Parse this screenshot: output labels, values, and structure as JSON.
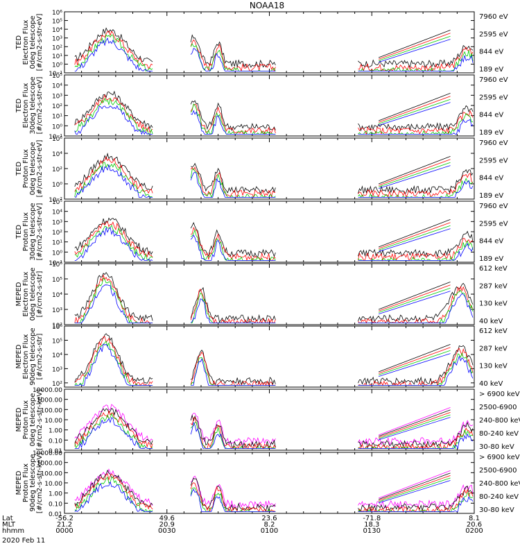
{
  "title": "NOAA18",
  "colors": {
    "black": "#000000",
    "red": "#ff0000",
    "green": "#00cc00",
    "blue": "#0000ff",
    "magenta": "#ff00ff"
  },
  "chart_data": [
    {
      "type": "line",
      "id": "p1",
      "ylabel": [
        "TED",
        "Electron Flux",
        "0deg telescope",
        "[#/cm2-s-str-eV]"
      ],
      "ylim_exp": [
        -1,
        6
      ],
      "ticks": [
        {
          "v": 6,
          "t": "10⁶"
        },
        {
          "v": 5,
          "t": "10⁵"
        },
        {
          "v": 4,
          "t": "10⁴"
        },
        {
          "v": 3,
          "t": "10³"
        },
        {
          "v": 2,
          "t": "10²"
        },
        {
          "v": 1,
          "t": "10¹"
        },
        {
          "v": 0,
          "t": "10⁰"
        },
        {
          "v": -1,
          "t": "10⁻¹"
        }
      ],
      "legend": [
        {
          "label": "7960 eV",
          "color": "black"
        },
        {
          "label": "2595 eV",
          "color": "red"
        },
        {
          "label": "844 eV",
          "color": "green"
        },
        {
          "label": "189 eV",
          "color": "blue"
        }
      ]
    },
    {
      "type": "line",
      "id": "p2",
      "ylabel": [
        "TED",
        "Electron Flux",
        "30deg telescope",
        "[#/cm2-s-str-eV]"
      ],
      "ylim_exp": [
        -1,
        5
      ],
      "ticks": [
        {
          "v": 5,
          "t": "10⁵"
        },
        {
          "v": 4,
          "t": "10⁴"
        },
        {
          "v": 3,
          "t": "10³"
        },
        {
          "v": 2,
          "t": "10²"
        },
        {
          "v": 1,
          "t": "10¹"
        },
        {
          "v": 0,
          "t": "10⁰"
        },
        {
          "v": -1,
          "t": "10⁻¹"
        }
      ],
      "legend": [
        {
          "label": "7960 eV",
          "color": "black"
        },
        {
          "label": "2595 eV",
          "color": "red"
        },
        {
          "label": "844 eV",
          "color": "green"
        },
        {
          "label": "189 eV",
          "color": "blue"
        }
      ]
    },
    {
      "type": "line",
      "id": "p3",
      "ylabel": [
        "TED",
        "Proton Flux",
        "0deg telescope",
        "[#/cm2-s-str-eV]"
      ],
      "ylim_exp": [
        -2,
        6
      ],
      "ticks": [
        {
          "v": 6,
          "t": "10⁶"
        },
        {
          "v": 4,
          "t": "10⁴"
        },
        {
          "v": 2,
          "t": "10²"
        },
        {
          "v": 0,
          "t": "10⁰"
        },
        {
          "v": -2,
          "t": "10⁻²"
        }
      ],
      "legend": [
        {
          "label": "7960 eV",
          "color": "black"
        },
        {
          "label": "2595 eV",
          "color": "red"
        },
        {
          "label": "844 eV",
          "color": "green"
        },
        {
          "label": "189 eV",
          "color": "blue"
        }
      ]
    },
    {
      "type": "line",
      "id": "p4",
      "ylabel": [
        "TED",
        "Proton Flux",
        "30deg telescope",
        "[#/cm2-s-str-eV]"
      ],
      "ylim_exp": [
        -1,
        5
      ],
      "ticks": [
        {
          "v": 5,
          "t": "10⁵"
        },
        {
          "v": 4,
          "t": "10⁴"
        },
        {
          "v": 3,
          "t": "10³"
        },
        {
          "v": 2,
          "t": "10²"
        },
        {
          "v": 1,
          "t": "10¹"
        },
        {
          "v": 0,
          "t": "10⁰"
        },
        {
          "v": -1,
          "t": "10⁻¹"
        }
      ],
      "legend": [
        {
          "label": "7960 eV",
          "color": "black"
        },
        {
          "label": "2595 eV",
          "color": "red"
        },
        {
          "label": "844 eV",
          "color": "green"
        },
        {
          "label": "189 eV",
          "color": "blue"
        }
      ]
    },
    {
      "type": "line",
      "id": "p5",
      "ylabel": [
        "MEPED",
        "Electron Flux",
        "0deg telescope",
        "[#/cm2-s-str]"
      ],
      "ylim_exp": [
        2,
        6
      ],
      "ticks": [
        {
          "v": 6,
          "t": "10⁶"
        },
        {
          "v": 5,
          "t": "10⁵"
        },
        {
          "v": 4,
          "t": "10⁴"
        },
        {
          "v": 3,
          "t": "10³"
        },
        {
          "v": 2,
          "t": "10²"
        }
      ],
      "legend": [
        {
          "label": "612 keV",
          "color": "black"
        },
        {
          "label": "287 keV",
          "color": "red"
        },
        {
          "label": "130 keV",
          "color": "green"
        },
        {
          "label": "40 keV",
          "color": "blue"
        }
      ]
    },
    {
      "type": "line",
      "id": "p6",
      "ylabel": [
        "MEPED",
        "Electron Flux",
        "90deg telescope",
        "[#/cm2-s-str]"
      ],
      "ylim_exp": [
        1.7,
        6
      ],
      "ticks": [
        {
          "v": 6,
          "t": "10⁶"
        },
        {
          "v": 5,
          "t": "10⁵"
        },
        {
          "v": 4,
          "t": "10⁴"
        },
        {
          "v": 3,
          "t": "10³"
        },
        {
          "v": 2,
          "t": "10²"
        }
      ],
      "legend": [
        {
          "label": "612 keV",
          "color": "black"
        },
        {
          "label": "287 keV",
          "color": "red"
        },
        {
          "label": "130 keV",
          "color": "green"
        },
        {
          "label": "40 keV",
          "color": "blue"
        }
      ]
    },
    {
      "type": "line",
      "id": "p7",
      "ylabel": [
        "MEPED",
        "Proton Flux",
        "0deg telescope",
        "[#/cm2-s-str-keV]"
      ],
      "ylim_exp": [
        -2,
        4
      ],
      "ticks": [
        {
          "v": 4,
          "t": "10000.00"
        },
        {
          "v": 3,
          "t": "1000.00"
        },
        {
          "v": 2,
          "t": "100.00"
        },
        {
          "v": 1,
          "t": "10.00"
        },
        {
          "v": 0,
          "t": "1.00"
        },
        {
          "v": -1,
          "t": "0.10"
        },
        {
          "v": -2,
          "t": "0.01"
        }
      ],
      "legend": [
        {
          "label": "> 6900 keV",
          "color": "magenta"
        },
        {
          "label": "2500-6900",
          "color": "black"
        },
        {
          "label": "240-800 keV",
          "color": "red"
        },
        {
          "label": "80-240 keV",
          "color": "green"
        },
        {
          "label": "30-80 keV",
          "color": "blue"
        }
      ]
    },
    {
      "type": "line",
      "id": "p8",
      "ylabel": [
        "MEPED",
        "Proton Flux",
        "90deg telescope",
        "[#/cm2-s-str-keV]"
      ],
      "ylim_exp": [
        -2,
        4
      ],
      "ticks": [
        {
          "v": 4,
          "t": "10000.00"
        },
        {
          "v": 3,
          "t": "1000.00"
        },
        {
          "v": 2,
          "t": "100.00"
        },
        {
          "v": 1,
          "t": "10.00"
        },
        {
          "v": 0,
          "t": "1.00"
        },
        {
          "v": -1,
          "t": "0.10"
        },
        {
          "v": -2,
          "t": "0.01"
        }
      ],
      "legend": [
        {
          "label": "> 6900 keV",
          "color": "magenta"
        },
        {
          "label": "2500-6900",
          "color": "black"
        },
        {
          "label": "240-800 keV",
          "color": "red"
        },
        {
          "label": "80-240 keV",
          "color": "green"
        },
        {
          "label": "30-80 keV",
          "color": "blue"
        }
      ]
    }
  ],
  "x_axis": {
    "row_labels": [
      "Lat",
      "MLT",
      "hhmm",
      "2020 Feb 11"
    ],
    "ticks": [
      {
        "t": 0,
        "lat": "-56.2",
        "mlt": "21.2",
        "hhmm": "0000"
      },
      {
        "t": 30,
        "lat": "49.6",
        "mlt": "20.9",
        "hhmm": "0030"
      },
      {
        "t": 60,
        "lat": "23.6",
        "mlt": "8.2",
        "hhmm": "0100"
      },
      {
        "t": 90,
        "lat": "-71.8",
        "mlt": "18.3",
        "hhmm": "0130"
      },
      {
        "t": 120,
        "lat": "8.1",
        "mlt": "20.6",
        "hhmm": "0200"
      }
    ]
  }
}
